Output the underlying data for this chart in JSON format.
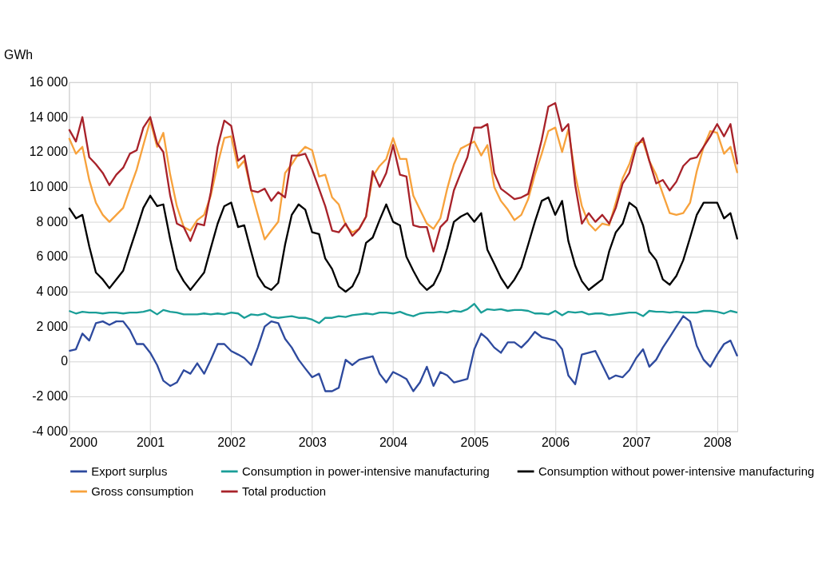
{
  "chart_data": {
    "type": "line",
    "ylabel": "GWh",
    "x": [
      "2000-01",
      "2000-02",
      "2000-03",
      "2000-04",
      "2000-05",
      "2000-06",
      "2000-07",
      "2000-08",
      "2000-09",
      "2000-10",
      "2000-11",
      "2000-12",
      "2001-01",
      "2001-02",
      "2001-03",
      "2001-04",
      "2001-05",
      "2001-06",
      "2001-07",
      "2001-08",
      "2001-09",
      "2001-10",
      "2001-11",
      "2001-12",
      "2002-01",
      "2002-02",
      "2002-03",
      "2002-04",
      "2002-05",
      "2002-06",
      "2002-07",
      "2002-08",
      "2002-09",
      "2002-10",
      "2002-11",
      "2002-12",
      "2003-01",
      "2003-02",
      "2003-03",
      "2003-04",
      "2003-05",
      "2003-06",
      "2003-07",
      "2003-08",
      "2003-09",
      "2003-10",
      "2003-11",
      "2003-12",
      "2004-01",
      "2004-02",
      "2004-03",
      "2004-04",
      "2004-05",
      "2004-06",
      "2004-07",
      "2004-08",
      "2004-09",
      "2004-10",
      "2004-11",
      "2004-12",
      "2005-01",
      "2005-02",
      "2005-03",
      "2005-04",
      "2005-05",
      "2005-06",
      "2005-07",
      "2005-08",
      "2005-09",
      "2005-10",
      "2005-11",
      "2005-12",
      "2006-01",
      "2006-02",
      "2006-03",
      "2006-04",
      "2006-05",
      "2006-06",
      "2006-07",
      "2006-08",
      "2006-09",
      "2006-10",
      "2006-11",
      "2006-12",
      "2007-01",
      "2007-02",
      "2007-03",
      "2007-04",
      "2007-05",
      "2007-06",
      "2007-07",
      "2007-08",
      "2007-09",
      "2007-10",
      "2007-11",
      "2007-12",
      "2008-01",
      "2008-02",
      "2008-03",
      "2008-04"
    ],
    "xlim": [
      "2000-01",
      "2008-04"
    ],
    "xticks": [
      "2000",
      "2001",
      "2002",
      "2003",
      "2004",
      "2005",
      "2006",
      "2007",
      "2008"
    ],
    "ylim": [
      -4000,
      16000
    ],
    "yticks": [
      {
        "value": -4000,
        "label": "-4 000"
      },
      {
        "value": -2000,
        "label": "-2 000"
      },
      {
        "value": 0,
        "label": "0"
      },
      {
        "value": 2000,
        "label": "2 000"
      },
      {
        "value": 4000,
        "label": "4 000"
      },
      {
        "value": 6000,
        "label": "6 000"
      },
      {
        "value": 8000,
        "label": "8 000"
      },
      {
        "value": 10000,
        "label": "10 000"
      },
      {
        "value": 12000,
        "label": "12 000"
      },
      {
        "value": 14000,
        "label": "14 000"
      },
      {
        "value": 16000,
        "label": "16 000"
      }
    ],
    "grid": true,
    "legend": "bottom",
    "marker": "none",
    "line_style": "solid",
    "series": [
      {
        "name": "Export surplus",
        "color": "#2e4a9e",
        "values": [
          600,
          700,
          1600,
          1200,
          2200,
          2300,
          2100,
          2300,
          2300,
          1800,
          1000,
          1000,
          500,
          -200,
          -1100,
          -1400,
          -1200,
          -500,
          -700,
          -100,
          -700,
          100,
          1000,
          1000,
          600,
          400,
          200,
          -200,
          800,
          2000,
          2300,
          2200,
          1300,
          800,
          100,
          -400,
          -900,
          -700,
          -1700,
          -1700,
          -1500,
          100,
          -200,
          100,
          200,
          300,
          -700,
          -1200,
          -600,
          -800,
          -1000,
          -1700,
          -1200,
          -300,
          -1400,
          -600,
          -800,
          -1200,
          -1100,
          -1000,
          700,
          1600,
          1300,
          800,
          500,
          1100,
          1100,
          800,
          1200,
          1700,
          1400,
          1300,
          1200,
          700,
          -800,
          -1300,
          400,
          500,
          600,
          -200,
          -1000,
          -800,
          -900,
          -500,
          200,
          700,
          -300,
          100,
          800,
          1400,
          2000,
          2600,
          2300,
          900,
          100,
          -300,
          400,
          1000,
          1200,
          300
        ]
      },
      {
        "name": "Consumption in power-intensive manufacturing",
        "color": "#1a9e98",
        "values": [
          2900,
          2750,
          2850,
          2800,
          2800,
          2750,
          2800,
          2800,
          2750,
          2800,
          2800,
          2850,
          2950,
          2700,
          2950,
          2850,
          2800,
          2700,
          2700,
          2700,
          2750,
          2700,
          2750,
          2700,
          2800,
          2750,
          2500,
          2700,
          2650,
          2750,
          2550,
          2500,
          2550,
          2600,
          2500,
          2500,
          2400,
          2200,
          2500,
          2500,
          2600,
          2550,
          2650,
          2700,
          2750,
          2700,
          2800,
          2800,
          2750,
          2850,
          2700,
          2600,
          2750,
          2800,
          2800,
          2850,
          2800,
          2900,
          2850,
          3000,
          3300,
          2800,
          3000,
          2950,
          3000,
          2900,
          2950,
          2950,
          2900,
          2750,
          2750,
          2700,
          2900,
          2650,
          2850,
          2800,
          2850,
          2700,
          2750,
          2750,
          2650,
          2700,
          2750,
          2800,
          2800,
          2600,
          2900,
          2850,
          2850,
          2800,
          2850,
          2800,
          2800,
          2800,
          2900,
          2900,
          2850,
          2750,
          2900,
          2800
        ]
      },
      {
        "name": "Consumption without power-intensive manufacturing",
        "color": "#000000",
        "values": [
          8800,
          8200,
          8400,
          6600,
          5100,
          4700,
          4200,
          4700,
          5200,
          6400,
          7600,
          8800,
          9500,
          8900,
          9000,
          7000,
          5300,
          4600,
          4100,
          4600,
          5100,
          6500,
          7900,
          8900,
          9100,
          7700,
          7800,
          6300,
          4900,
          4300,
          4100,
          4500,
          6700,
          8400,
          9000,
          8700,
          7400,
          7300,
          5900,
          5300,
          4300,
          4000,
          4300,
          5100,
          6800,
          7100,
          8100,
          9000,
          8000,
          7800,
          6000,
          5200,
          4500,
          4100,
          4400,
          5200,
          6500,
          8000,
          8300,
          8500,
          8000,
          8500,
          6400,
          5600,
          4800,
          4200,
          4700,
          5400,
          6700,
          8000,
          9200,
          9400,
          8400,
          9200,
          6900,
          5500,
          4600,
          4100,
          4400,
          4700,
          6300,
          7400,
          7900,
          9100,
          8800,
          7800,
          6300,
          5800,
          4700,
          4400,
          4900,
          5800,
          7100,
          8400,
          9100,
          9100,
          9100,
          8200,
          8500,
          7000
        ]
      },
      {
        "name": "Gross consumption",
        "color": "#f7a23c",
        "values": [
          12800,
          11900,
          12300,
          10400,
          9100,
          8400,
          8000,
          8400,
          8800,
          9900,
          11000,
          12400,
          13800,
          12300,
          13100,
          10700,
          8900,
          7700,
          7500,
          8100,
          8400,
          9500,
          11300,
          12800,
          12900,
          11100,
          11500,
          9800,
          8400,
          7000,
          7500,
          8000,
          10800,
          11300,
          11900,
          12300,
          12100,
          10600,
          10700,
          9400,
          9000,
          7800,
          7400,
          7600,
          8300,
          10600,
          11200,
          11600,
          12800,
          11600,
          11600,
          9500,
          8700,
          7900,
          7600,
          8200,
          9900,
          11300,
          12200,
          12400,
          12600,
          11800,
          12400,
          10000,
          9200,
          8700,
          8100,
          8400,
          9300,
          10700,
          11900,
          13200,
          13400,
          12000,
          13300,
          10700,
          8900,
          7900,
          7500,
          7900,
          7800,
          9100,
          10500,
          11300,
          12500,
          12600,
          11500,
          10700,
          9600,
          8500,
          8400,
          8500,
          9100,
          10900,
          12300,
          13200,
          13100,
          11900,
          12300,
          10800
        ]
      },
      {
        "name": "Total production",
        "color": "#a8222a",
        "values": [
          13300,
          12600,
          14000,
          11700,
          11300,
          10800,
          10100,
          10700,
          11100,
          11900,
          12100,
          13400,
          14000,
          12500,
          12000,
          9500,
          7900,
          7700,
          6900,
          7900,
          7800,
          9700,
          12300,
          13800,
          13500,
          11500,
          11800,
          9800,
          9700,
          9900,
          9200,
          9700,
          9400,
          11800,
          11800,
          11900,
          11000,
          9900,
          8900,
          7500,
          7400,
          7900,
          7200,
          7600,
          8300,
          10900,
          10000,
          10800,
          12400,
          10700,
          10600,
          7800,
          7700,
          7700,
          6300,
          7700,
          8100,
          9800,
          10800,
          11700,
          13400,
          13400,
          13600,
          10800,
          9900,
          9600,
          9300,
          9400,
          9600,
          11100,
          12700,
          14600,
          14800,
          13200,
          13600,
          10100,
          7900,
          8500,
          8000,
          8400,
          7900,
          8800,
          10200,
          10800,
          12300,
          12800,
          11500,
          10200,
          10400,
          9800,
          10300,
          11200,
          11600,
          11700,
          12300,
          12900,
          13600,
          12900,
          13600,
          11300
        ]
      }
    ]
  }
}
